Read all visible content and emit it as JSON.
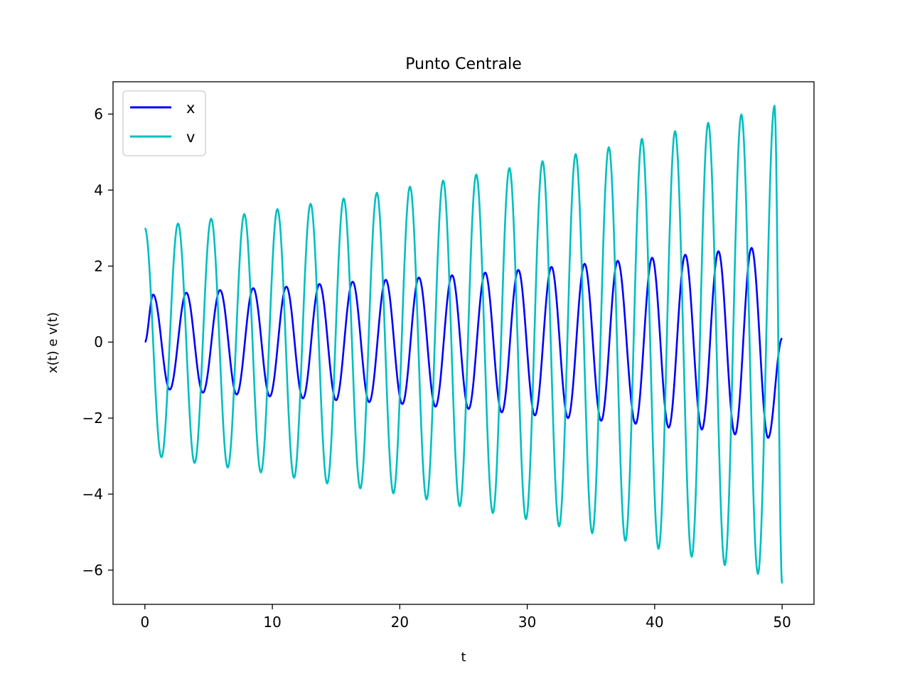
{
  "chart_data": {
    "type": "line",
    "title": "Punto Centrale",
    "xlabel": "t",
    "ylabel": "x(t) e v(t)",
    "xlim": [
      -2.5,
      52.5
    ],
    "ylim": [
      -6.9,
      6.85
    ],
    "xticks": [
      0,
      10,
      20,
      30,
      40,
      50
    ],
    "xtick_labels": [
      "0",
      "10",
      "20",
      "30",
      "40",
      "50"
    ],
    "yticks": [
      -6,
      -4,
      -2,
      0,
      2,
      4,
      6
    ],
    "ytick_labels": [
      "−6",
      "−4",
      "−2",
      "0",
      "2",
      "4",
      "6"
    ],
    "grid": false,
    "legend_position": "upper-left",
    "x_range": [
      0,
      50
    ],
    "series": [
      {
        "name": "x",
        "color": "#0000ff",
        "points": [
          [
            0,
            0
          ],
          [
            0.65,
            1.25
          ],
          [
            1.95,
            -1.25
          ],
          [
            3.25,
            1.3
          ],
          [
            4.55,
            -1.33
          ],
          [
            5.9,
            1.37
          ],
          [
            7.2,
            -1.38
          ],
          [
            8.5,
            1.42
          ],
          [
            9.8,
            -1.43
          ],
          [
            11.1,
            1.46
          ],
          [
            12.4,
            -1.48
          ],
          [
            13.7,
            1.53
          ],
          [
            15.0,
            -1.53
          ],
          [
            16.3,
            1.59
          ],
          [
            17.6,
            -1.58
          ],
          [
            18.9,
            1.64
          ],
          [
            20.2,
            -1.63
          ],
          [
            21.5,
            1.7
          ],
          [
            22.8,
            -1.7
          ],
          [
            24.1,
            1.76
          ],
          [
            25.4,
            -1.76
          ],
          [
            26.7,
            1.83
          ],
          [
            28.0,
            -1.85
          ],
          [
            29.3,
            1.9
          ],
          [
            30.6,
            -1.93
          ],
          [
            31.9,
            1.98
          ],
          [
            33.2,
            -2.0
          ],
          [
            34.5,
            2.06
          ],
          [
            35.8,
            -2.07
          ],
          [
            37.1,
            2.14
          ],
          [
            38.5,
            -2.15
          ],
          [
            39.8,
            2.22
          ],
          [
            41.1,
            -2.25
          ],
          [
            42.4,
            2.3
          ],
          [
            43.7,
            -2.3
          ],
          [
            45.0,
            2.39
          ],
          [
            46.3,
            -2.43
          ],
          [
            47.6,
            2.48
          ],
          [
            48.9,
            -2.52
          ],
          [
            50,
            0.1
          ]
        ]
      },
      {
        "name": "v",
        "color": "#00bfbf",
        "points": [
          [
            0,
            3.0
          ],
          [
            1.3,
            -3.03
          ],
          [
            2.6,
            3.12
          ],
          [
            3.9,
            -3.18
          ],
          [
            5.2,
            3.25
          ],
          [
            6.5,
            -3.3
          ],
          [
            7.8,
            3.37
          ],
          [
            9.1,
            -3.43
          ],
          [
            10.4,
            3.5
          ],
          [
            11.7,
            -3.57
          ],
          [
            13.0,
            3.64
          ],
          [
            14.3,
            -3.72
          ],
          [
            15.6,
            3.78
          ],
          [
            16.9,
            -3.85
          ],
          [
            18.2,
            3.93
          ],
          [
            19.5,
            -3.98
          ],
          [
            20.8,
            4.09
          ],
          [
            22.1,
            -4.14
          ],
          [
            23.4,
            4.25
          ],
          [
            24.7,
            -4.32
          ],
          [
            26.0,
            4.41
          ],
          [
            27.3,
            -4.5
          ],
          [
            28.6,
            4.58
          ],
          [
            29.9,
            -4.66
          ],
          [
            31.2,
            4.76
          ],
          [
            32.5,
            -4.85
          ],
          [
            33.8,
            4.95
          ],
          [
            35.1,
            -5.03
          ],
          [
            36.4,
            5.13
          ],
          [
            37.7,
            -5.23
          ],
          [
            39.0,
            5.35
          ],
          [
            40.3,
            -5.44
          ],
          [
            41.6,
            5.55
          ],
          [
            42.9,
            -5.65
          ],
          [
            44.2,
            5.77
          ],
          [
            45.5,
            -5.87
          ],
          [
            46.8,
            5.99
          ],
          [
            48.1,
            -6.1
          ],
          [
            49.4,
            6.22
          ],
          [
            50,
            -6.35
          ]
        ]
      }
    ]
  }
}
